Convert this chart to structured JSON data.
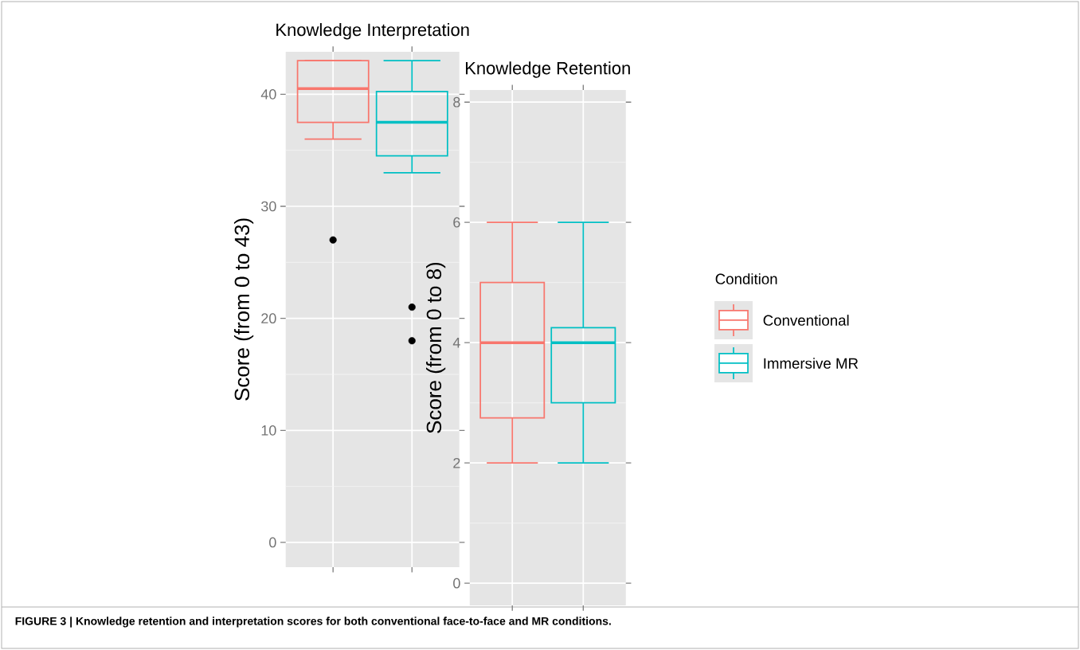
{
  "chart_data": [
    {
      "type": "box",
      "title": "Knowledge Interpretation",
      "ylabel": "Score (from 0 to 43)",
      "categories": [
        null,
        null
      ],
      "ylim": [
        -2.2,
        43.8
      ],
      "yticks": [
        0,
        10,
        20,
        30,
        40
      ],
      "grid": true,
      "tick_labels": "y",
      "series": [
        {
          "color": "#f8766d",
          "boxes": [
            {
              "low": 36,
              "q1": 37.5,
              "median": 40.5,
              "q3": 43,
              "high": 43,
              "outliers": [
                27
              ]
            },
            null
          ]
        },
        {
          "color": "#00bfc4",
          "boxes": [
            null,
            {
              "low": 33,
              "q1": 34.5,
              "median": 37.5,
              "q3": 40.25,
              "high": 43,
              "outliers": [
                21,
                18
              ]
            }
          ]
        }
      ],
      "annotations": [
        "FIGURE 3 | Knowledge retention and interpretation scores for both conventional face-to-face and MR conditions."
      ]
    },
    {
      "type": "box",
      "title": "Knowledge Retention",
      "ylabel": "Score (from 0 to 8)",
      "categories": [
        null,
        null
      ],
      "ylim": [
        -0.37,
        8.2
      ],
      "yticks": [
        0,
        2,
        4,
        6,
        8
      ],
      "grid": true,
      "tick_labels": "y",
      "legend": "right",
      "legend_title": "Condition",
      "series": [
        {
          "name": "Conventional",
          "color": "#f8766d",
          "boxes": [
            {
              "low": 2,
              "q1": 2.75,
              "median": 4,
              "q3": 5,
              "high": 6
            },
            null
          ]
        },
        {
          "name": "Immersive MR",
          "color": "#00bfc4",
          "boxes": [
            null,
            {
              "low": 2,
              "q1": 3,
              "median": 4,
              "q3": 4.25,
              "high": 6
            }
          ]
        }
      ]
    }
  ]
}
